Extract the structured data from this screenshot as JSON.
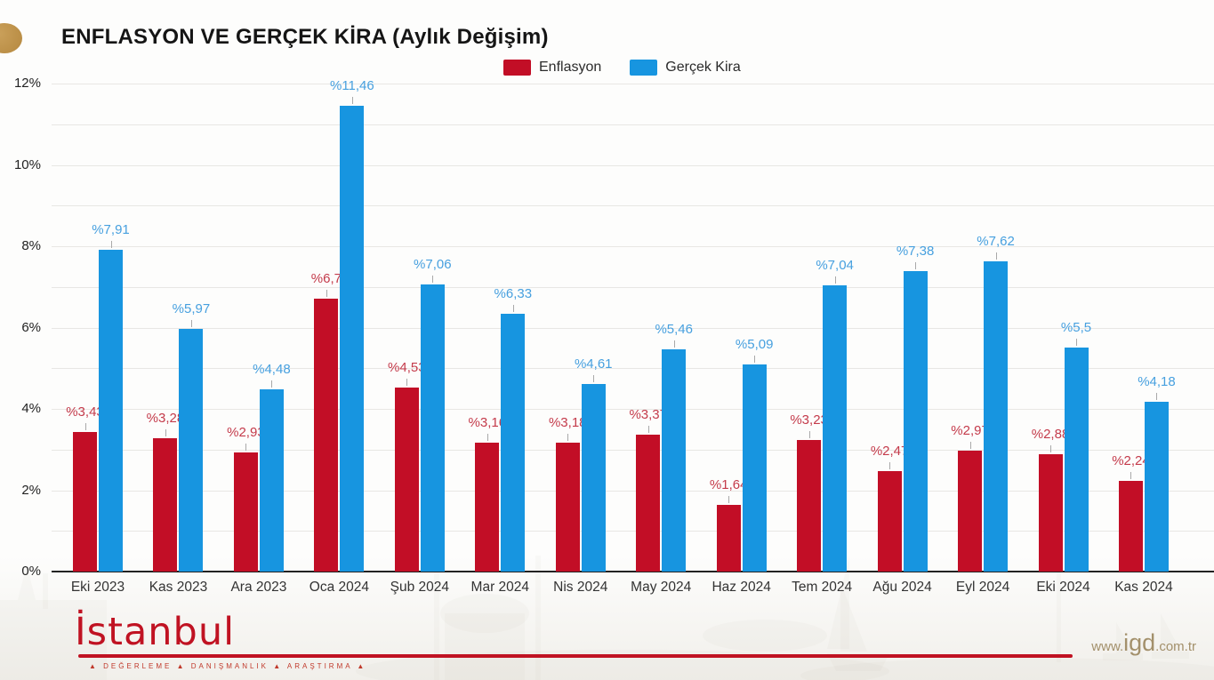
{
  "header": {
    "title": "ENFLASYON VE GERÇEK KİRA (Aylık Değişim)"
  },
  "legend": [
    {
      "label": "Enflasyon"
    },
    {
      "label": "Gerçek Kira"
    }
  ],
  "chart_data": {
    "type": "bar",
    "title": "ENFLASYON VE GERÇEK KİRA (Aylık Değişim)",
    "categories": [
      "Eki 2023",
      "Kas 2023",
      "Ara 2023",
      "Oca 2024",
      "Şub 2024",
      "Mar 2024",
      "Nis 2024",
      "May 2024",
      "Haz 2024",
      "Tem 2024",
      "Ağu 2024",
      "Eyl 2024",
      "Eki 2024",
      "Kas 2024"
    ],
    "series": [
      {
        "name": "Enflasyon",
        "color": "#c20e26",
        "label_color": "#c43b4b",
        "values": [
          3.43,
          3.28,
          2.93,
          6.7,
          4.53,
          3.16,
          3.18,
          3.37,
          1.64,
          3.23,
          2.47,
          2.97,
          2.88,
          2.24
        ],
        "labels": [
          "%3,43",
          "%3,28",
          "%2,93",
          "%6,7",
          "%4,53",
          "%3,16",
          "%3,18",
          "%3,37",
          "%1,64",
          "%3,23",
          "%2,47",
          "%2,97",
          "%2,88",
          "%2,24"
        ]
      },
      {
        "name": "Gerçek Kira",
        "color": "#1795e0",
        "label_color": "#47a0df",
        "values": [
          7.91,
          5.97,
          4.48,
          11.46,
          7.06,
          6.33,
          4.61,
          5.46,
          5.09,
          7.04,
          7.38,
          7.62,
          5.5,
          4.18
        ],
        "labels": [
          "%7,91",
          "%5,97",
          "%4,48",
          "%11,46",
          "%7,06",
          "%6,33",
          "%4,61",
          "%5,46",
          "%5,09",
          "%7,04",
          "%7,38",
          "%7,62",
          "%5,5",
          "%4,18"
        ]
      }
    ],
    "xlabel": "",
    "ylabel": "",
    "ylim": [
      0,
      12
    ],
    "yticks": [
      "0%",
      "2%",
      "4%",
      "6%",
      "8%",
      "10%",
      "12%"
    ],
    "grid": true,
    "minor_grid_step": 1,
    "legend_position": "top"
  },
  "footer": {
    "logo_text": "İstanbul",
    "logo_tagline": "▲   DEĞERLEME    ▲    DANIŞMANLIK    ▲    ARAŞTIRMA    ▲",
    "site": {
      "prefix": "www.",
      "brand": "igd",
      "suffix": ".com.tr"
    }
  }
}
